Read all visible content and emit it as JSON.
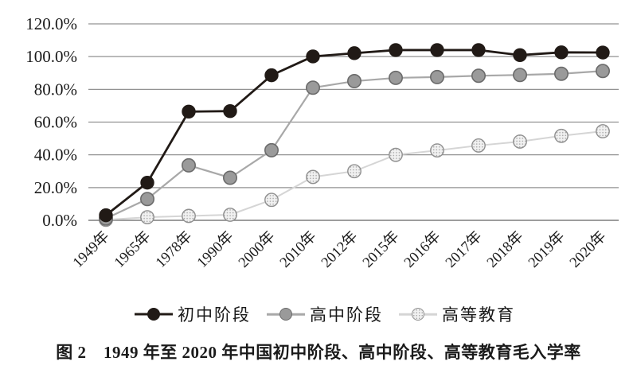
{
  "figure": {
    "title": "图 2　1949 年至 2020 年中国初中阶段、高中阶段、高等教育毛入学率"
  },
  "chart_data": {
    "type": "line",
    "title": "",
    "xlabel": "",
    "ylabel": "",
    "categories": [
      "1949年",
      "1965年",
      "1978年",
      "1990年",
      "2000年",
      "2010年",
      "2012年",
      "2015年",
      "2016年",
      "2017年",
      "2018年",
      "2019年",
      "2020年"
    ],
    "series": [
      {
        "id": "junior-high",
        "name": "初中阶段",
        "values": [
          3.1,
          23.0,
          66.4,
          66.7,
          88.6,
          100.1,
          102.1,
          104.0,
          104.0,
          104.0,
          100.9,
          102.6,
          102.5
        ],
        "line_color": "#211a16",
        "line_width": 2.8,
        "marker_fill": "#211a16",
        "marker_stroke": "#211a16",
        "marker_stroke_width": 1,
        "marker_texture": "solid"
      },
      {
        "id": "senior-high",
        "name": "高中阶段",
        "values": [
          1.1,
          13.0,
          33.6,
          26.0,
          42.8,
          81.0,
          85.0,
          87.0,
          87.5,
          88.3,
          88.8,
          89.5,
          91.2
        ],
        "line_color": "#a8a8a8",
        "line_width": 2.2,
        "marker_fill": "#9a9a9a",
        "marker_stroke": "#6b6b6b",
        "marker_stroke_width": 1.6,
        "marker_texture": "solid"
      },
      {
        "id": "higher-education",
        "name": "高等教育",
        "values": [
          0.3,
          1.9,
          2.7,
          3.4,
          12.5,
          26.5,
          30.0,
          40.0,
          42.7,
          45.7,
          48.1,
          51.6,
          54.4
        ],
        "line_color": "#d5d5d5",
        "line_width": 2,
        "marker_fill": "#f1f1f1",
        "marker_stroke": "#8f8f8f",
        "marker_stroke_width": 1.4,
        "marker_texture": "dots"
      }
    ],
    "ylim": [
      0,
      120
    ],
    "y_tick_values": [
      120,
      100,
      80,
      60,
      40,
      20,
      0
    ],
    "y_tick_labels": [
      "120.0%",
      "100.0%",
      "80.0%",
      "60.0%",
      "40.0%",
      "20.0%",
      "0.0%"
    ],
    "grid": "horizontal",
    "legend_position": "bottom",
    "colors": {
      "background": "#ffffff",
      "gridline": "#929292",
      "zero_line": "#7d7d7d",
      "text": "#1a1a1a",
      "dot_texture": "#aeaeae"
    }
  }
}
